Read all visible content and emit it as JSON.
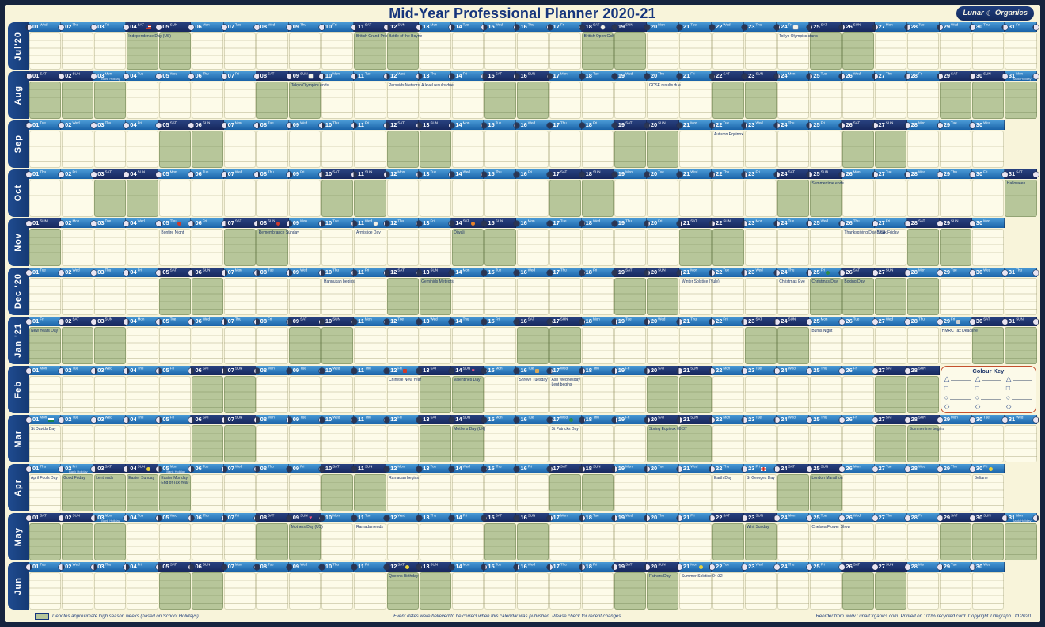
{
  "title": "Mid-Year Professional Planner 2020-21",
  "logo": {
    "left": "Lunar",
    "right": "Organics",
    "moon_glyph": "☾"
  },
  "colors": {
    "accent_navy": "#16357c",
    "header_blue": "#2f7fc1",
    "weekend_navy": "#1c2e6e",
    "season_green": "#b7c69a",
    "sheet_cream": "#f8f4da",
    "key_border_red": "#c4502e"
  },
  "weekday_labels": [
    "SUN",
    "Mon",
    "Tue",
    "Wed",
    "Thu",
    "Fri",
    "SAT"
  ],
  "colour_key": {
    "title": "Colour Key",
    "shapes": [
      "triangle",
      "square",
      "circle",
      "diamond"
    ],
    "glyphs": {
      "triangle": "△",
      "square": "□",
      "circle": "○",
      "diamond": "◇"
    },
    "columns": 3
  },
  "footer": {
    "left": "Denotes approximate high season weeks (based on School Holidays)",
    "center": "Event dates were believed to be correct when this calendar was published. Please check for recent changes",
    "right": "Reorder from www.LunarOrganics.com.  Printed on 100% recycled card.  Copyright Tidegraph Ltd 2020"
  },
  "months": [
    {
      "id": "jul20",
      "label": "Jul'20",
      "year": 2020,
      "month": 7,
      "days": 31,
      "start": 3,
      "green": [
        4,
        5,
        11,
        12,
        18,
        19,
        25,
        26
      ],
      "events": {
        "4": [
          "Independence Day (US)"
        ],
        "11": [
          "British Grand Prix"
        ],
        "12": [
          "Battle of the Boyne"
        ],
        "18": [
          "British Open Golf"
        ],
        "24": [
          "Tokyo Olympics starts"
        ]
      },
      "icons": {
        "4": "us-flag",
        "18": "golf-ball",
        "24": "olympic-rings"
      },
      "subs": {}
    },
    {
      "id": "aug",
      "label": "Aug",
      "year": 2020,
      "month": 8,
      "days": 31,
      "start": 6,
      "green": [
        1,
        2,
        3,
        8,
        9,
        15,
        16,
        22,
        23,
        29,
        30,
        31
      ],
      "events": {
        "9": [
          "Tokyo Olympics ends"
        ],
        "12": [
          "Perseids Meteors"
        ],
        "13": [
          "A level results due"
        ],
        "20": [
          "GCSE results due"
        ]
      },
      "icons": {
        "9": "olympic-rings"
      },
      "subs": {
        "3": "Bank Holiday",
        "31": "Bank Holiday"
      }
    },
    {
      "id": "sep",
      "label": "Sep",
      "year": 2020,
      "month": 9,
      "days": 30,
      "start": 2,
      "green": [
        5,
        6,
        12,
        13,
        19,
        20,
        26,
        27
      ],
      "events": {
        "22": [
          "Autumn Equinox"
        ]
      },
      "icons": {},
      "subs": {}
    },
    {
      "id": "oct",
      "label": "Oct",
      "year": 2020,
      "month": 10,
      "days": 31,
      "start": 4,
      "green": [
        3,
        4,
        10,
        11,
        17,
        18,
        24,
        25,
        31
      ],
      "events": {
        "25": [
          "Summertime ends"
        ],
        "31": [
          "Halloween"
        ]
      },
      "icons": {},
      "subs": {}
    },
    {
      "id": "nov",
      "label": "Nov",
      "year": 2020,
      "month": 11,
      "days": 30,
      "start": 0,
      "green": [
        1,
        7,
        8,
        14,
        15,
        21,
        22,
        28,
        29
      ],
      "events": {
        "5": [
          "Bonfire Night"
        ],
        "8": [
          "Remembrance Sunday"
        ],
        "11": [
          "Armistice Day"
        ],
        "14": [
          "Diwali"
        ],
        "26": [
          "Thanksgiving Day (US)"
        ],
        "27": [
          "Black Friday"
        ]
      },
      "icons": {
        "5": "firework",
        "8": "poppy",
        "11": "anchor",
        "14": "diya"
      },
      "subs": {}
    },
    {
      "id": "dec20",
      "label": "Dec '20",
      "year": 2020,
      "month": 12,
      "days": 31,
      "start": 2,
      "green": [
        5,
        6,
        12,
        13,
        19,
        20,
        25,
        26,
        27,
        28
      ],
      "events": {
        "10": [
          "Hannukah begins"
        ],
        "13": [
          "Geminids Meteors"
        ],
        "21": [
          "Winter Solstice (Yule)"
        ],
        "24": [
          "Christmas Eve"
        ],
        "25": [
          "Christmas Day"
        ],
        "26": [
          "Boxing Day"
        ]
      },
      "icons": {
        "25": "holly"
      },
      "subs": {}
    },
    {
      "id": "jan21",
      "label": "Jan '21",
      "year": 2021,
      "month": 1,
      "days": 31,
      "start": 5,
      "green": [
        1,
        2,
        3,
        9,
        10,
        16,
        17,
        23,
        24,
        30,
        31
      ],
      "events": {
        "1": [
          "New Years Day"
        ],
        "25": [
          "Burns Night"
        ],
        "29": [
          "HMRC Tax Deadline"
        ]
      },
      "icons": {
        "29": "tax-reminder"
      },
      "subs": {}
    },
    {
      "id": "feb",
      "label": "Feb",
      "year": 2021,
      "month": 2,
      "days": 28,
      "start": 1,
      "green": [
        6,
        7,
        13,
        14,
        20,
        21,
        27,
        28
      ],
      "events": {
        "12": [
          "Chinese New Year"
        ],
        "14": [
          "Valentines Day"
        ],
        "16": [
          "Shrove Tuesday"
        ],
        "17": [
          "Ash Wednesday",
          "Lent begins"
        ]
      },
      "icons": {
        "12": "lantern",
        "14": "heart",
        "16": "pancake"
      },
      "subs": {},
      "colour_key": true
    },
    {
      "id": "mar",
      "label": "Mar",
      "year": 2021,
      "month": 3,
      "days": 31,
      "start": 1,
      "green": [
        6,
        7,
        13,
        14,
        20,
        21,
        27,
        28
      ],
      "events": {
        "1": [
          "St Davids Day"
        ],
        "14": [
          "Mothers Day (UK)"
        ],
        "17": [
          "St Patricks Day"
        ],
        "20": [
          "Spring Equinox 09:37"
        ],
        "28": [
          "Summertime begins"
        ]
      },
      "icons": {
        "1": "wales-flag",
        "17": "shamrock"
      },
      "subs": {}
    },
    {
      "id": "apr",
      "label": "Apr",
      "year": 2021,
      "month": 4,
      "days": 30,
      "start": 4,
      "green": [
        2,
        3,
        4,
        5,
        10,
        11,
        17,
        18,
        24,
        25
      ],
      "events": {
        "1": [
          "April Fools Day"
        ],
        "2": [
          "Good Friday"
        ],
        "3": [
          "Lent ends"
        ],
        "4": [
          "Easter Sunday"
        ],
        "5": [
          "Easter Monday",
          "End of Tax Year"
        ],
        "12": [
          "Ramadan begins"
        ],
        "22": [
          "Earth Day"
        ],
        "23": [
          "St Georges Day"
        ],
        "25": [
          "London Marathon"
        ],
        "30": [
          "Beltane"
        ]
      },
      "icons": {
        "4": "easter-chick",
        "23": "england-flag",
        "30": "beltane-fire"
      },
      "subs": {
        "2": "Bank Holiday",
        "5": "Bank Holiday"
      }
    },
    {
      "id": "may",
      "label": "May",
      "year": 2021,
      "month": 5,
      "days": 31,
      "start": 6,
      "green": [
        1,
        2,
        3,
        8,
        9,
        15,
        16,
        22,
        23,
        29,
        30,
        31
      ],
      "events": {
        "9": [
          "Mothers Day (US)"
        ],
        "11": [
          "Ramadan ends"
        ],
        "23": [
          "Whit Sunday"
        ],
        "25": [
          "Chelsea Flower Show"
        ]
      },
      "icons": {
        "9": "heart"
      },
      "subs": {
        "3": "Bank Holiday",
        "31": "Bank Holiday"
      }
    },
    {
      "id": "jun",
      "label": "Jun",
      "year": 2021,
      "month": 6,
      "days": 30,
      "start": 2,
      "green": [
        5,
        6,
        12,
        13,
        19,
        20,
        26,
        27
      ],
      "events": {
        "12": [
          "Queens Birthday"
        ],
        "20": [
          "Fathers Day"
        ],
        "21": [
          "Summer Solstice 04:32"
        ]
      },
      "icons": {
        "12": "crown",
        "21": "sun"
      },
      "subs": {}
    }
  ]
}
